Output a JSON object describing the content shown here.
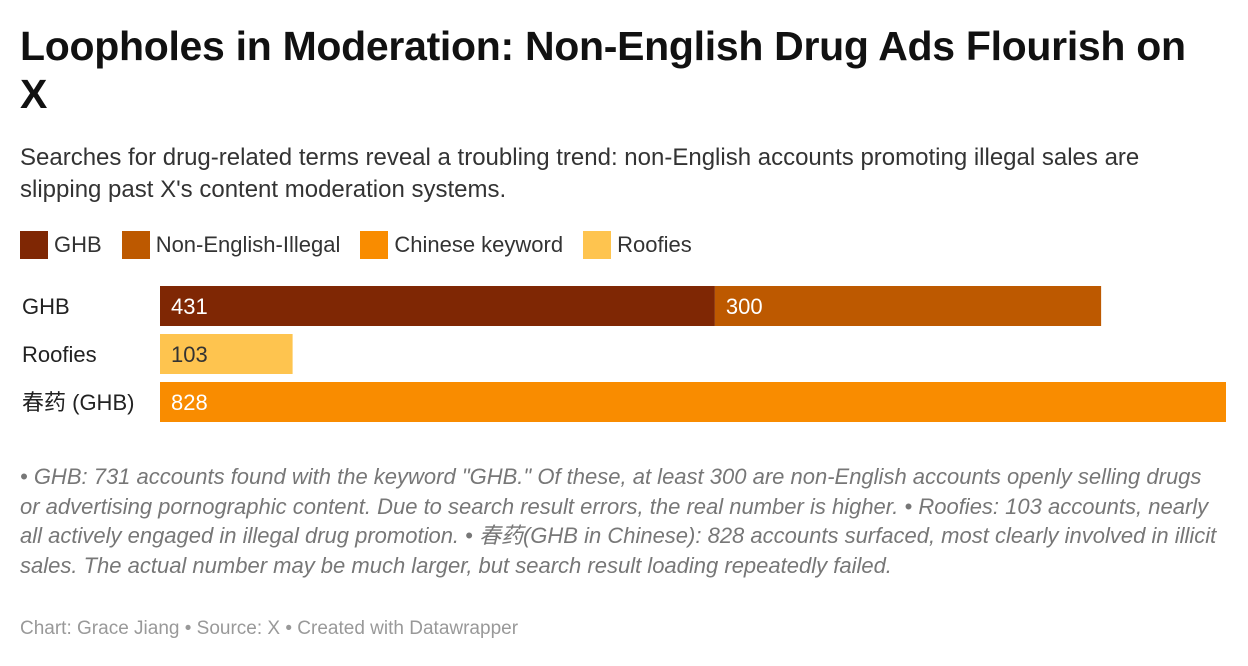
{
  "title": "Loopholes in Moderation: Non-English Drug Ads Flourish on X",
  "subtitle": "Searches for drug-related terms reveal a troubling trend: non-English accounts promoting illegal sales are slipping past X's content moderation systems.",
  "notes": "• GHB: 731 accounts found with the keyword \"GHB.\" Of these, at least 300 are non-English accounts openly selling drugs or advertising pornographic content. Due to search result errors, the real number is higher. • Roofies: 103 accounts, nearly all actively engaged in illegal drug promotion. • 春药(GHB in Chinese): 828 accounts surfaced, most clearly involved in illicit sales. The actual number may be much larger, but search result loading repeatedly failed.",
  "credit": "Chart: Grace Jiang • Source: X • Created with Datawrapper",
  "chart_data": {
    "type": "bar",
    "orientation": "horizontal",
    "stacked": true,
    "categories": [
      "GHB",
      "Roofies",
      "春药 (GHB)"
    ],
    "series": [
      {
        "name": "GHB",
        "color": "#7f2704",
        "values": [
          431,
          null,
          null
        ]
      },
      {
        "name": "Non-English-Illegal",
        "color": "#bd5900",
        "values": [
          300,
          null,
          null
        ]
      },
      {
        "name": "Chinese keyword",
        "color": "#f98c00",
        "values": [
          null,
          null,
          828
        ]
      },
      {
        "name": "Roofies",
        "color": "#fec44f",
        "values": [
          null,
          103,
          null
        ]
      }
    ],
    "xlim": [
      0,
      828
    ],
    "grid": false,
    "legend": "top-left",
    "label_color": {
      "#7f2704": "#ffffff",
      "#bd5900": "#ffffff",
      "#f98c00": "#ffffff",
      "#fec44f": "#333333"
    }
  }
}
